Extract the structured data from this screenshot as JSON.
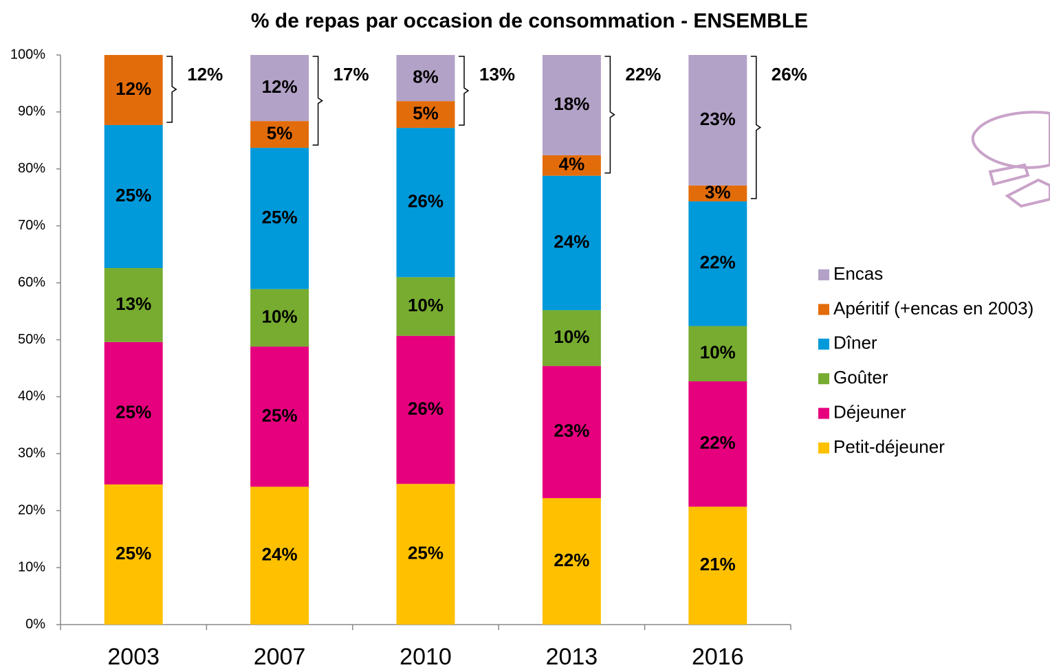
{
  "chart_data": {
    "type": "stacked_bar",
    "title": "% de repas par occasion de consommation - ENSEMBLE",
    "categories": [
      "2003",
      "2007",
      "2010",
      "2013",
      "2016"
    ],
    "ylim": [
      0,
      100
    ],
    "yticks": [
      {
        "value": 0,
        "label": "0%"
      },
      {
        "value": 10,
        "label": "10%"
      },
      {
        "value": 20,
        "label": "20%"
      },
      {
        "value": 30,
        "label": "30%"
      },
      {
        "value": 40,
        "label": "40%"
      },
      {
        "value": 50,
        "label": "50%"
      },
      {
        "value": 60,
        "label": "60%"
      },
      {
        "value": 70,
        "label": "70%"
      },
      {
        "value": 80,
        "label": "80%"
      },
      {
        "value": 90,
        "label": "90%"
      },
      {
        "value": 100,
        "label": "100%"
      }
    ],
    "grid": false,
    "legend": "right",
    "series": [
      {
        "name": "Petit-déjeuner",
        "color": "#FFC000",
        "values": [
          24.6,
          24.2,
          24.7,
          22.2,
          20.7
        ],
        "value_labels": [
          "25%",
          "24%",
          "25%",
          "22%",
          "21%"
        ]
      },
      {
        "name": "Déjeuner",
        "color": "#E6007E",
        "values": [
          25.0,
          24.6,
          26.0,
          23.2,
          22.0
        ],
        "value_labels": [
          "25%",
          "25%",
          "26%",
          "23%",
          "22%"
        ]
      },
      {
        "name": "Goûter",
        "color": "#77AC30",
        "values": [
          13.0,
          10.1,
          10.3,
          9.8,
          9.7
        ],
        "value_labels": [
          "13%",
          "10%",
          "10%",
          "10%",
          "10%"
        ]
      },
      {
        "name": "Dîner",
        "color": "#0099DA",
        "values": [
          25.1,
          24.8,
          26.2,
          23.6,
          21.9
        ],
        "value_labels": [
          "25%",
          "25%",
          "26%",
          "24%",
          "22%"
        ]
      },
      {
        "name": "Apéritif (+encas en 2003)",
        "color": "#E36C0A",
        "values": [
          12.3,
          4.7,
          4.7,
          3.6,
          2.8
        ],
        "value_labels": [
          "12%",
          "5%",
          "5%",
          "4%",
          "3%"
        ]
      },
      {
        "name": "Encas",
        "color": "#B3A2C7",
        "values": [
          null,
          11.6,
          8.1,
          17.6,
          22.9
        ],
        "value_labels": [
          null,
          "12%",
          "8%",
          "18%",
          "23%"
        ]
      }
    ],
    "bracket_totals": {
      "values": [
        12,
        17,
        13,
        22,
        26
      ],
      "value_labels": [
        "12%",
        "17%",
        "13%",
        "22%",
        "26%"
      ]
    }
  }
}
